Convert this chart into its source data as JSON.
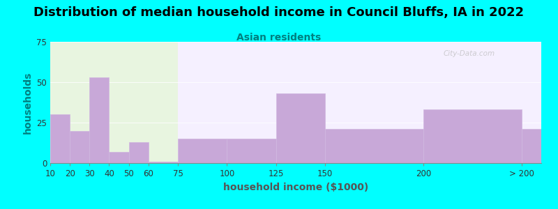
{
  "title": "Distribution of median household income in Council Bluffs, IA in 2022",
  "subtitle": "Asian residents",
  "xlabel": "household income ($1000)",
  "ylabel": "households",
  "background_color": "#00FFFF",
  "bar_color": "#c8a8d8",
  "bar_edge_color": "#d0b8e0",
  "bin_edges": [
    10,
    20,
    30,
    40,
    50,
    60,
    75,
    100,
    125,
    150,
    200,
    250
  ],
  "values": [
    30,
    20,
    53,
    7,
    13,
    1,
    15,
    15,
    43,
    21,
    33,
    21
  ],
  "xtick_positions": [
    10,
    20,
    30,
    40,
    50,
    60,
    75,
    100,
    125,
    150,
    200,
    250
  ],
  "xtick_labels": [
    "10",
    "20",
    "30",
    "40",
    "50",
    "60",
    "75",
    "100",
    "125",
    "150",
    "200",
    "> 200"
  ],
  "ylim": [
    0,
    75
  ],
  "xlim": [
    10,
    260
  ],
  "yticks": [
    0,
    25,
    50,
    75
  ],
  "title_fontsize": 13,
  "subtitle_fontsize": 10,
  "axis_label_fontsize": 10,
  "tick_fontsize": 8.5,
  "watermark_text": "City-Data.com",
  "title_color": "#000000",
  "subtitle_color": "#008080",
  "ylabel_color": "#008080",
  "xlabel_color": "#555555",
  "plot_bg_left_color": "#e8f5e0",
  "plot_bg_right_color": "#f5f0ff",
  "bg_split_x": 75
}
